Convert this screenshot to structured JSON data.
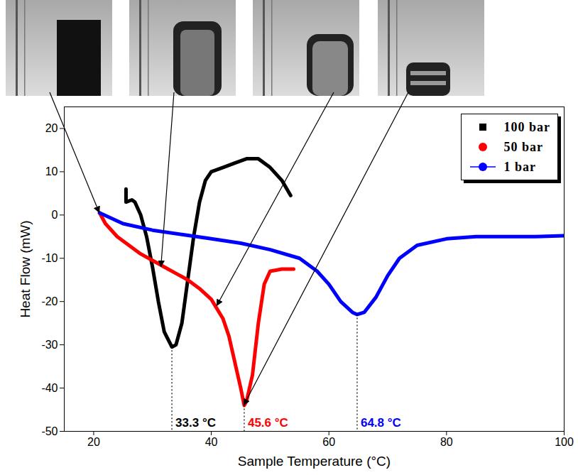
{
  "chart_data": {
    "type": "line",
    "x_label": "Sample Temperature (°C)",
    "y_label": "Heat Flow (mW)",
    "xlim": [
      15,
      100
    ],
    "xticks": [
      20,
      40,
      60,
      80,
      100
    ],
    "ylim": [
      -50,
      25
    ],
    "yticks": [
      -50,
      -40,
      -30,
      -20,
      -10,
      0,
      10,
      20
    ],
    "legend": "top-right",
    "series": [
      {
        "name": "100 bar",
        "color": "#000000",
        "marker": "square",
        "x": [
          25.5,
          25.5,
          26.5,
          27,
          28,
          29,
          30,
          31,
          32,
          33.3,
          34,
          35,
          36,
          37,
          38,
          39,
          40,
          42,
          44,
          46,
          48,
          50,
          52,
          53.5
        ],
        "values": [
          6,
          3,
          3.5,
          3,
          0,
          -5,
          -12,
          -20,
          -27,
          -30.5,
          -30,
          -25,
          -15,
          -5,
          3,
          8,
          10,
          11,
          12,
          13,
          13,
          11,
          8,
          4.5
        ]
      },
      {
        "name": "50 bar",
        "color": "#ff0000",
        "marker": "circle",
        "x": [
          21,
          22,
          24,
          26,
          28,
          30,
          32,
          34,
          36,
          38,
          40,
          42,
          43,
          44,
          45,
          45.6,
          46,
          47,
          48,
          49,
          50,
          52,
          54
        ],
        "values": [
          0.5,
          -2,
          -5,
          -7,
          -9,
          -10.5,
          -12,
          -13.5,
          -15,
          -17,
          -19.5,
          -24,
          -28,
          -34,
          -40,
          -44,
          -43,
          -37,
          -25,
          -16,
          -13,
          -12.5,
          -12.5
        ]
      },
      {
        "name": "1 bar",
        "color": "#0000ff",
        "marker": "circle",
        "line_style": "solid",
        "x": [
          21,
          25,
          30,
          35,
          40,
          45,
          50,
          55,
          58,
          60,
          62,
          64,
          64.8,
          66,
          68,
          70,
          72,
          75,
          80,
          85,
          90,
          95,
          100
        ],
        "values": [
          0.5,
          -2,
          -3.5,
          -4.5,
          -5.5,
          -6.5,
          -8,
          -10,
          -13,
          -16,
          -20,
          -22.5,
          -23,
          -22.5,
          -19,
          -14,
          -10,
          -7,
          -5.5,
          -5,
          -5,
          -5,
          -4.8
        ]
      }
    ],
    "annotations": [
      {
        "text": "33.3 °C",
        "x": 33.3,
        "y": -30.5,
        "color": "#000000"
      },
      {
        "text": "45.6 °C",
        "x": 45.6,
        "y": -44,
        "color": "#ff0000"
      },
      {
        "text": "64.8 °C",
        "x": 64.8,
        "y": -23,
        "color": "#0000ff"
      }
    ],
    "photo_points": {
      "x": [
        21,
        31.5,
        41,
        45.6
      ],
      "y": [
        0.5,
        -12,
        -21,
        -44
      ]
    }
  }
}
